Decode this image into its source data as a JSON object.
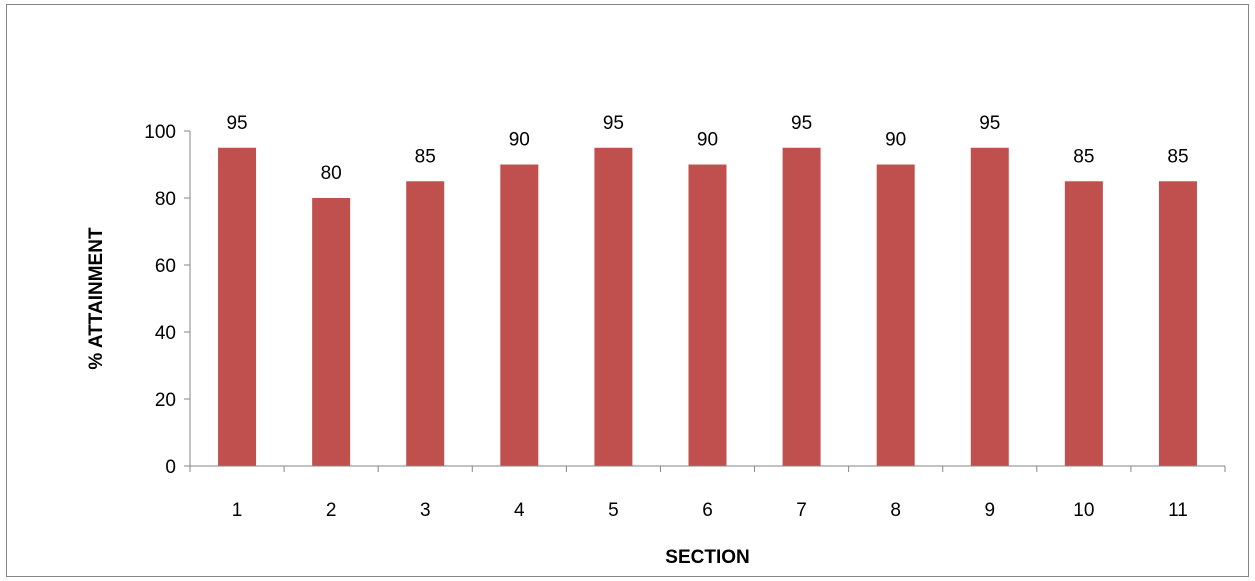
{
  "chart_data": {
    "type": "bar",
    "categories": [
      "1",
      "2",
      "3",
      "4",
      "5",
      "6",
      "7",
      "8",
      "9",
      "10",
      "11"
    ],
    "values": [
      95,
      80,
      85,
      90,
      95,
      90,
      95,
      90,
      95,
      85,
      85
    ],
    "data_labels": [
      "95",
      "80",
      "85",
      "90",
      "95",
      "90",
      "95",
      "90",
      "95",
      "85",
      "85"
    ],
    "xlabel": "SECTION",
    "ylabel": "% ATTAINMENT",
    "ylim": [
      0,
      100
    ],
    "yticks": [
      "0",
      "20",
      "40",
      "60",
      "80",
      "100"
    ],
    "grid": false,
    "legend": "none",
    "colors": {
      "bar": "#c0504d",
      "axis": "#868686"
    }
  }
}
